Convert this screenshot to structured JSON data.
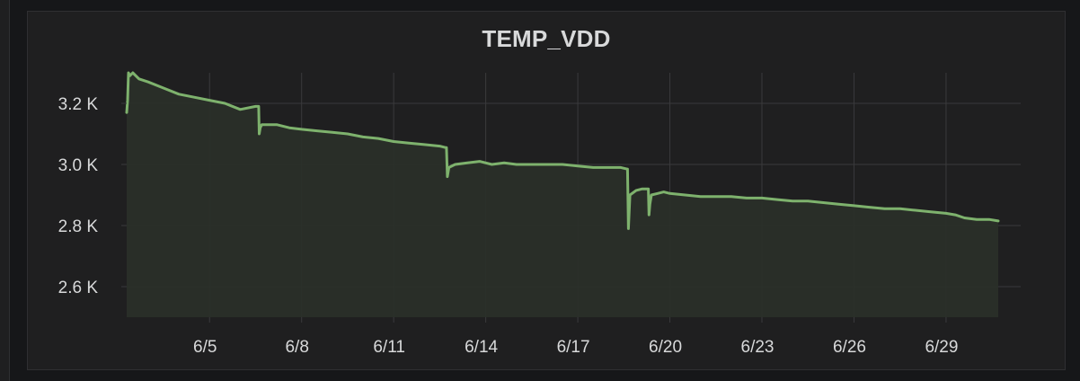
{
  "panel": {
    "title": "TEMP_VDD"
  },
  "colors": {
    "background": "#161719",
    "panel": "#1f1f20",
    "grid": "#3a3a3c",
    "series_line": "#7eb26d",
    "series_fill": "#2a2f29",
    "text": "#d8d9da"
  },
  "chart_data": {
    "type": "area",
    "title": "TEMP_VDD",
    "xlabel": "",
    "ylabel": "",
    "x_domain": [
      2.3,
      30.7
    ],
    "ylim": [
      2.5,
      3.3
    ],
    "y_ticks": [
      {
        "value": 2.6,
        "label": "2.6 K"
      },
      {
        "value": 2.8,
        "label": "2.8 K"
      },
      {
        "value": 3.0,
        "label": "3.0 K"
      },
      {
        "value": 3.2,
        "label": "3.2 K"
      }
    ],
    "x_ticks": [
      {
        "value": 5,
        "label": "6/5"
      },
      {
        "value": 8,
        "label": "6/8"
      },
      {
        "value": 11,
        "label": "6/11"
      },
      {
        "value": 14,
        "label": "6/14"
      },
      {
        "value": 17,
        "label": "6/17"
      },
      {
        "value": 20,
        "label": "6/20"
      },
      {
        "value": 23,
        "label": "6/23"
      },
      {
        "value": 26,
        "label": "6/26"
      },
      {
        "value": 29,
        "label": "6/29"
      }
    ],
    "grid": true,
    "legend": "none",
    "series": [
      {
        "x": [
          2.3,
          2.33,
          2.36,
          2.4,
          2.5,
          2.7,
          3.0,
          3.5,
          4.0,
          4.5,
          5.0,
          5.5,
          6.0,
          6.5,
          6.6,
          6.62,
          6.65,
          6.7,
          6.9,
          7.2,
          7.6,
          8.0,
          8.5,
          9.0,
          9.5,
          10.0,
          10.5,
          11.0,
          11.5,
          12.0,
          12.5,
          12.7,
          12.72,
          12.75,
          12.8,
          13.0,
          13.4,
          13.8,
          14.2,
          14.6,
          15.0,
          15.5,
          16.0,
          16.5,
          17.0,
          17.5,
          18.0,
          18.4,
          18.6,
          18.62,
          18.65,
          18.7,
          18.9,
          19.1,
          19.3,
          19.32,
          19.35,
          19.4,
          19.6,
          19.8,
          20.0,
          20.5,
          21.0,
          21.5,
          22.0,
          22.5,
          23.0,
          23.5,
          24.0,
          24.5,
          25.0,
          25.5,
          26.0,
          26.5,
          27.0,
          27.5,
          28.0,
          28.5,
          29.0,
          29.3,
          29.6,
          30.0,
          30.4,
          30.7
        ],
        "values": [
          3.17,
          3.21,
          3.3,
          3.29,
          3.3,
          3.28,
          3.27,
          3.25,
          3.23,
          3.22,
          3.21,
          3.2,
          3.18,
          3.19,
          3.19,
          3.1,
          3.12,
          3.13,
          3.13,
          3.13,
          3.12,
          3.115,
          3.11,
          3.105,
          3.1,
          3.09,
          3.085,
          3.075,
          3.07,
          3.065,
          3.06,
          3.055,
          3.055,
          2.96,
          2.99,
          3.0,
          3.005,
          3.01,
          3.0,
          3.005,
          3.0,
          3.0,
          3.0,
          3.0,
          2.995,
          2.99,
          2.99,
          2.99,
          2.985,
          2.985,
          2.79,
          2.9,
          2.915,
          2.92,
          2.92,
          2.835,
          2.87,
          2.9,
          2.905,
          2.91,
          2.905,
          2.9,
          2.895,
          2.895,
          2.895,
          2.89,
          2.89,
          2.885,
          2.88,
          2.88,
          2.875,
          2.87,
          2.865,
          2.86,
          2.855,
          2.855,
          2.85,
          2.845,
          2.84,
          2.835,
          2.825,
          2.82,
          2.82,
          2.815
        ]
      }
    ]
  }
}
